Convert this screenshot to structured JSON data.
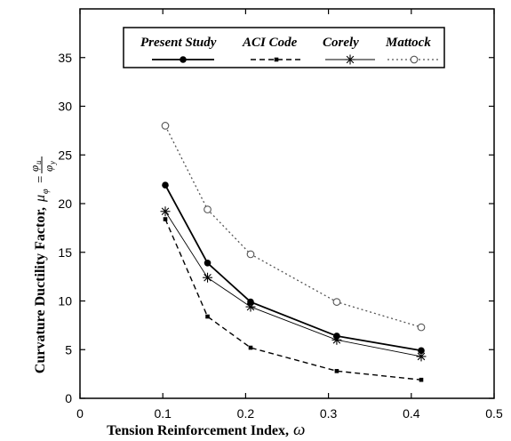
{
  "chart_data": {
    "type": "line",
    "xlabel": "Tension Reinforcement Index,",
    "xlabel_symbol": "ω",
    "ylabel": "Curvature Ductility Factor,",
    "ylabel_formula": {
      "lhs_symbol": "μ",
      "lhs_subscript": "φ",
      "equals": "=",
      "numerator_symbol": "φ",
      "numerator_subscript": "u",
      "denominator_symbol": "φ",
      "denominator_subscript": "y"
    },
    "xlim": [
      0,
      0.5
    ],
    "ylim": [
      0,
      40
    ],
    "x_ticks": [
      "0",
      "0.1",
      "0.2",
      "0.3",
      "0.4",
      "0.5"
    ],
    "y_ticks": [
      "0",
      "5",
      "10",
      "15",
      "20",
      "25",
      "30",
      "35"
    ],
    "legend_position": "top-center",
    "series": [
      {
        "name": "Present Study",
        "style": "solid",
        "marker": "filled-circle",
        "color": "#000000",
        "x": [
          0.103,
          0.154,
          0.206,
          0.31,
          0.412
        ],
        "y": [
          21.9,
          13.9,
          9.9,
          6.4,
          4.9
        ]
      },
      {
        "name": "ACI Code",
        "style": "dashed",
        "marker": "filled-square",
        "color": "#000000",
        "x": [
          0.103,
          0.154,
          0.206,
          0.31,
          0.412
        ],
        "y": [
          18.4,
          8.4,
          5.2,
          2.8,
          1.9
        ]
      },
      {
        "name": "Corely",
        "style": "thin-solid",
        "marker": "asterisk",
        "color": "#000000",
        "x": [
          0.103,
          0.154,
          0.206,
          0.31,
          0.412
        ],
        "y": [
          19.2,
          12.4,
          9.4,
          6.0,
          4.3
        ]
      },
      {
        "name": "Mattock",
        "style": "dotted",
        "marker": "open-circle",
        "color": "#555555",
        "x": [
          0.103,
          0.154,
          0.206,
          0.31,
          0.412
        ],
        "y": [
          28.0,
          19.4,
          14.8,
          9.9,
          7.3
        ]
      }
    ]
  }
}
